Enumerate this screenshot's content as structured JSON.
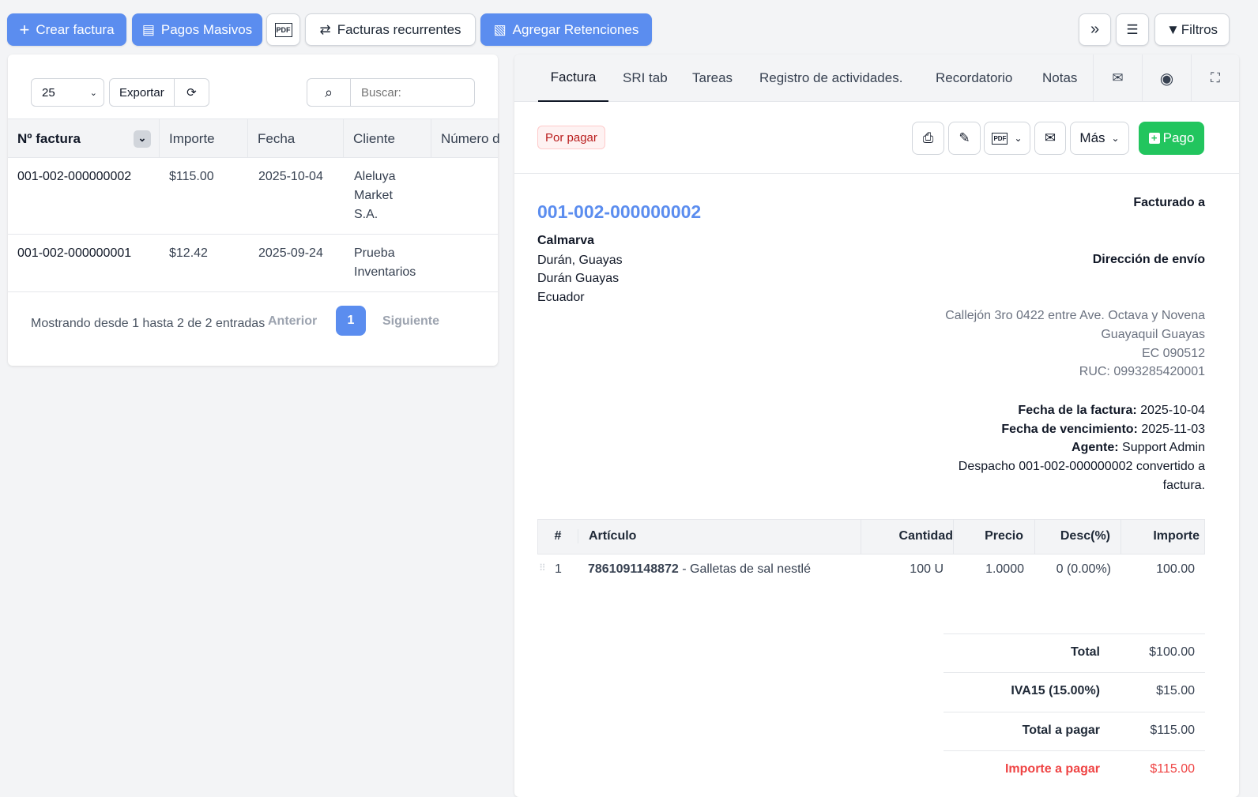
{
  "toolbar": {
    "create": "Crear factura",
    "bulk": "Pagos Masivos",
    "recurring": "Facturas recurrentes",
    "retentions": "Agregar Retenciones",
    "filters": "Filtros"
  },
  "list": {
    "page_size": "25",
    "export": "Exportar",
    "search_placeholder": "Buscar:",
    "columns": [
      "Nº factura",
      "Importe",
      "Fecha",
      "Cliente",
      "Número d"
    ],
    "rows": [
      {
        "number": "001-002-000000002",
        "amount": "$115.00",
        "date": "2025-10-04",
        "client": "Aleluya Market S.A."
      },
      {
        "number": "001-002-000000001",
        "amount": "$12.42",
        "date": "2025-09-24",
        "client": "Prueba Inventarios"
      }
    ],
    "info": "Mostrando desde 1 hasta 2 de 2 entradas",
    "prev": "Anterior",
    "page": "1",
    "next": "Siguiente"
  },
  "detail": {
    "tabs": [
      "Factura",
      "SRI tab",
      "Tareas",
      "Registro de actividades.",
      "Recordatorio",
      "Notas"
    ],
    "status": "Por pagar",
    "more": "Más",
    "pay": "Pago",
    "invoice_number": "001-002-000000002",
    "billed_to_label": "Facturado a",
    "shipping_label": "Dirección de envío",
    "client": {
      "name": "Calmarva",
      "line1": "Durán, Guayas",
      "line2": "Durán Guayas",
      "line3": "Ecuador"
    },
    "shipping": {
      "line1": "Callejón 3ro 0422 entre Ave. Octava y Novena",
      "line2": "Guayaquil Guayas",
      "line3": "EC 090512",
      "line4": "RUC: 0993285420001"
    },
    "meta": {
      "date_label": "Fecha de la factura:",
      "date": "2025-10-04",
      "due_label": "Fecha de vencimiento:",
      "due": "2025-11-03",
      "agent_label": "Agente:",
      "agent": "Support Admin",
      "note1": "Despacho 001-002-000000002 convertido a",
      "note2": "factura."
    },
    "items_columns": [
      "#",
      "Artículo",
      "Cantidad",
      "Precio",
      "Desc(%)",
      "Importe"
    ],
    "items": [
      {
        "n": "1",
        "code": "7861091148872",
        "desc": " - Galletas de sal nestlé",
        "qty": "100 U",
        "price": "1.0000",
        "disc": "0 (0.00%)",
        "amount": "100.00"
      }
    ],
    "totals": [
      {
        "label": "Total",
        "value": "$100.00"
      },
      {
        "label": "IVA15 (15.00%)",
        "value": "$15.00"
      },
      {
        "label": "Total a pagar",
        "value": "$115.00"
      },
      {
        "label": "Importe a pagar",
        "value": "$115.00"
      }
    ]
  },
  "colors": {
    "primary": "#5b8def",
    "success": "#22c55e",
    "danger": "#ef4444"
  }
}
